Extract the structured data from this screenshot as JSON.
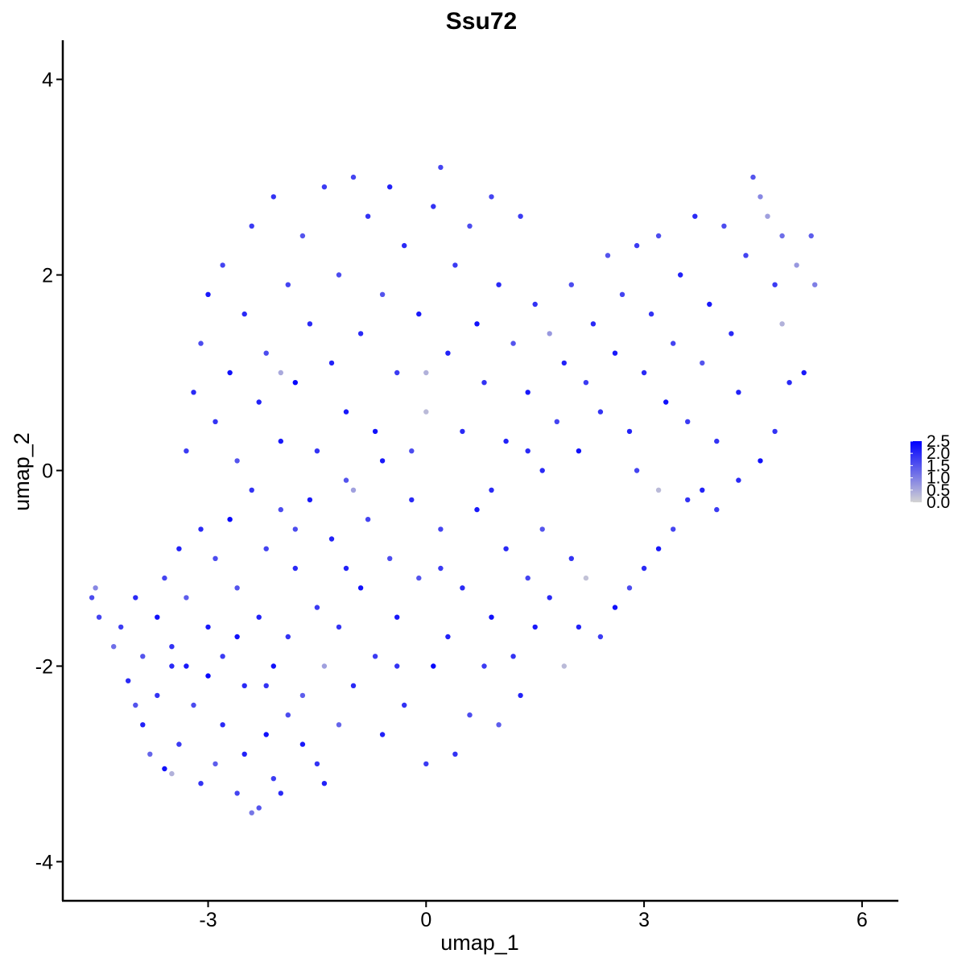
{
  "chart_data": {
    "type": "scatter",
    "title": "Ssu72",
    "xlabel": "umap_1",
    "ylabel": "umap_2",
    "xlim": [
      -5.0,
      6.5
    ],
    "ylim": [
      -4.4,
      4.4
    ],
    "x_ticks": [
      {
        "value": -3,
        "label": "-3"
      },
      {
        "value": 0,
        "label": "0"
      },
      {
        "value": 3,
        "label": "3"
      },
      {
        "value": 6,
        "label": "6"
      }
    ],
    "y_ticks": [
      {
        "value": -4,
        "label": "-4"
      },
      {
        "value": -2,
        "label": "-2"
      },
      {
        "value": 0,
        "label": "0"
      },
      {
        "value": 2,
        "label": "2"
      },
      {
        "value": 4,
        "label": "4"
      }
    ],
    "color_scale": {
      "name": "expression",
      "low_color": "#d3d3d3",
      "high_color": "#0000ff",
      "range": [
        0.0,
        2.5
      ],
      "ticks": [
        {
          "value": 2.5,
          "label": "2.5"
        },
        {
          "value": 2.0,
          "label": "2.0"
        },
        {
          "value": 1.5,
          "label": "1.5"
        },
        {
          "value": 1.0,
          "label": "1.0"
        },
        {
          "value": 0.5,
          "label": "0.5"
        },
        {
          "value": 0.0,
          "label": "0.0"
        }
      ]
    },
    "legend_position": "right",
    "grid": false,
    "points": [
      {
        "x": -4.6,
        "y": -1.3,
        "v": 1.6
      },
      {
        "x": -4.55,
        "y": -1.2,
        "v": 0.9
      },
      {
        "x": -4.5,
        "y": -1.5,
        "v": 1.7
      },
      {
        "x": -4.3,
        "y": -1.8,
        "v": 1.2
      },
      {
        "x": -4.1,
        "y": -2.15,
        "v": 2.0
      },
      {
        "x": -4.0,
        "y": -2.4,
        "v": 1.5
      },
      {
        "x": -3.9,
        "y": -2.6,
        "v": 2.1
      },
      {
        "x": -3.8,
        "y": -2.9,
        "v": 1.3
      },
      {
        "x": -3.7,
        "y": -2.3,
        "v": 1.9
      },
      {
        "x": -3.6,
        "y": -3.05,
        "v": 2.3
      },
      {
        "x": -3.5,
        "y": -3.1,
        "v": 0.4
      },
      {
        "x": -3.4,
        "y": -2.8,
        "v": 1.8
      },
      {
        "x": -3.3,
        "y": -2.0,
        "v": 2.2
      },
      {
        "x": -3.2,
        "y": -2.4,
        "v": 1.6
      },
      {
        "x": -3.1,
        "y": -3.2,
        "v": 1.9
      },
      {
        "x": -3.0,
        "y": -2.1,
        "v": 2.4
      },
      {
        "x": -2.9,
        "y": -3.0,
        "v": 1.4
      },
      {
        "x": -2.8,
        "y": -2.6,
        "v": 2.0
      },
      {
        "x": -2.6,
        "y": -3.3,
        "v": 1.7
      },
      {
        "x": -2.5,
        "y": -2.9,
        "v": 2.1
      },
      {
        "x": -2.4,
        "y": -3.5,
        "v": 1.1
      },
      {
        "x": -2.3,
        "y": -3.45,
        "v": 1.5
      },
      {
        "x": -2.2,
        "y": -2.7,
        "v": 2.3
      },
      {
        "x": -2.1,
        "y": -3.15,
        "v": 1.8
      },
      {
        "x": -2.0,
        "y": -3.3,
        "v": 2.0
      },
      {
        "x": -1.9,
        "y": -2.5,
        "v": 1.6
      },
      {
        "x": -1.7,
        "y": -2.8,
        "v": 2.2
      },
      {
        "x": -1.5,
        "y": -3.0,
        "v": 1.9
      },
      {
        "x": -1.4,
        "y": -3.2,
        "v": 2.1
      },
      {
        "x": -1.2,
        "y": -2.6,
        "v": 1.3
      },
      {
        "x": -4.2,
        "y": -1.6,
        "v": 1.8
      },
      {
        "x": -4.0,
        "y": -1.3,
        "v": 2.0
      },
      {
        "x": -3.9,
        "y": -1.9,
        "v": 1.5
      },
      {
        "x": -3.7,
        "y": -1.5,
        "v": 2.3
      },
      {
        "x": -3.6,
        "y": -1.1,
        "v": 1.7
      },
      {
        "x": -3.5,
        "y": -1.8,
        "v": 1.9
      },
      {
        "x": -3.4,
        "y": -0.8,
        "v": 2.1
      },
      {
        "x": -3.3,
        "y": -1.3,
        "v": 1.4
      },
      {
        "x": -3.1,
        "y": -0.6,
        "v": 2.0
      },
      {
        "x": -3.0,
        "y": -1.6,
        "v": 2.2
      },
      {
        "x": -2.9,
        "y": -0.9,
        "v": 1.6
      },
      {
        "x": -2.8,
        "y": -1.9,
        "v": 1.8
      },
      {
        "x": -2.7,
        "y": -0.5,
        "v": 2.4
      },
      {
        "x": -2.6,
        "y": -1.2,
        "v": 1.5
      },
      {
        "x": -2.5,
        "y": -2.2,
        "v": 2.0
      },
      {
        "x": -2.4,
        "y": -0.2,
        "v": 1.9
      },
      {
        "x": -2.3,
        "y": -1.5,
        "v": 2.1
      },
      {
        "x": -2.2,
        "y": -0.8,
        "v": 1.7
      },
      {
        "x": -2.1,
        "y": -2.0,
        "v": 2.3
      },
      {
        "x": -2.0,
        "y": -0.4,
        "v": 1.6
      },
      {
        "x": -1.9,
        "y": -1.7,
        "v": 1.9
      },
      {
        "x": -1.8,
        "y": -1.0,
        "v": 2.0
      },
      {
        "x": -1.7,
        "y": -2.3,
        "v": 1.4
      },
      {
        "x": -1.6,
        "y": -0.3,
        "v": 2.2
      },
      {
        "x": -1.5,
        "y": -1.4,
        "v": 1.8
      },
      {
        "x": -1.4,
        "y": -2.0,
        "v": 0.6
      },
      {
        "x": -1.3,
        "y": -0.7,
        "v": 2.1
      },
      {
        "x": -1.2,
        "y": -1.6,
        "v": 1.9
      },
      {
        "x": -1.1,
        "y": -0.1,
        "v": 1.5
      },
      {
        "x": -1.0,
        "y": -2.2,
        "v": 2.0
      },
      {
        "x": -0.9,
        "y": -1.2,
        "v": 2.3
      },
      {
        "x": -0.8,
        "y": -0.5,
        "v": 1.7
      },
      {
        "x": -0.7,
        "y": -1.9,
        "v": 1.8
      },
      {
        "x": -0.6,
        "y": -2.7,
        "v": 2.1
      },
      {
        "x": -0.5,
        "y": -0.9,
        "v": 1.6
      },
      {
        "x": -0.4,
        "y": -1.5,
        "v": 2.2
      },
      {
        "x": -0.3,
        "y": -2.4,
        "v": 1.9
      },
      {
        "x": -0.2,
        "y": -0.3,
        "v": 2.0
      },
      {
        "x": -0.1,
        "y": -1.1,
        "v": 1.5
      },
      {
        "x": 0.0,
        "y": -3.0,
        "v": 1.8
      },
      {
        "x": 0.1,
        "y": -2.0,
        "v": 2.4
      },
      {
        "x": 0.2,
        "y": -0.6,
        "v": 1.7
      },
      {
        "x": 0.3,
        "y": -1.7,
        "v": 2.1
      },
      {
        "x": 0.4,
        "y": -2.9,
        "v": 1.9
      },
      {
        "x": 0.5,
        "y": -1.2,
        "v": 2.0
      },
      {
        "x": 0.6,
        "y": -2.5,
        "v": 1.6
      },
      {
        "x": 0.7,
        "y": -0.4,
        "v": 2.2
      },
      {
        "x": 0.8,
        "y": -2.0,
        "v": 1.8
      },
      {
        "x": 0.9,
        "y": -1.5,
        "v": 2.3
      },
      {
        "x": 1.0,
        "y": -2.6,
        "v": 1.4
      },
      {
        "x": 1.1,
        "y": -0.8,
        "v": 2.0
      },
      {
        "x": 1.2,
        "y": -1.9,
        "v": 1.9
      },
      {
        "x": 1.3,
        "y": -2.3,
        "v": 2.1
      },
      {
        "x": 1.4,
        "y": -1.1,
        "v": 1.7
      },
      {
        "x": 1.5,
        "y": -1.6,
        "v": 2.2
      },
      {
        "x": 1.6,
        "y": -0.6,
        "v": 1.5
      },
      {
        "x": 1.7,
        "y": -1.3,
        "v": 2.0
      },
      {
        "x": 1.9,
        "y": -2.0,
        "v": 0.3
      },
      {
        "x": 2.0,
        "y": -0.9,
        "v": 1.9
      },
      {
        "x": 2.1,
        "y": -1.6,
        "v": 2.1
      },
      {
        "x": 2.2,
        "y": -1.1,
        "v": 0.2
      },
      {
        "x": 2.4,
        "y": -1.7,
        "v": 1.8
      },
      {
        "x": 2.6,
        "y": -1.4,
        "v": 2.3
      },
      {
        "x": 2.8,
        "y": -1.2,
        "v": 1.6
      },
      {
        "x": 3.0,
        "y": -1.0,
        "v": 2.0
      },
      {
        "x": 3.2,
        "y": -0.8,
        "v": 2.2
      },
      {
        "x": 3.4,
        "y": -0.6,
        "v": 1.7
      },
      {
        "x": 3.6,
        "y": -0.3,
        "v": 1.9
      },
      {
        "x": 3.8,
        "y": -0.2,
        "v": 2.1
      },
      {
        "x": -3.3,
        "y": 0.2,
        "v": 1.8
      },
      {
        "x": -3.2,
        "y": 0.8,
        "v": 2.0
      },
      {
        "x": -3.1,
        "y": 1.3,
        "v": 1.6
      },
      {
        "x": -3.0,
        "y": 1.8,
        "v": 2.2
      },
      {
        "x": -2.9,
        "y": 0.5,
        "v": 1.9
      },
      {
        "x": -2.8,
        "y": 2.1,
        "v": 1.7
      },
      {
        "x": -2.7,
        "y": 1.0,
        "v": 2.3
      },
      {
        "x": -2.6,
        "y": 0.1,
        "v": 1.5
      },
      {
        "x": -2.5,
        "y": 1.6,
        "v": 2.0
      },
      {
        "x": -2.4,
        "y": 2.5,
        "v": 1.8
      },
      {
        "x": -2.3,
        "y": 0.7,
        "v": 2.1
      },
      {
        "x": -2.2,
        "y": 1.2,
        "v": 1.6
      },
      {
        "x": -2.1,
        "y": 2.8,
        "v": 1.9
      },
      {
        "x": -2.0,
        "y": 0.3,
        "v": 2.2
      },
      {
        "x": -1.9,
        "y": 1.9,
        "v": 1.7
      },
      {
        "x": -1.8,
        "y": 0.9,
        "v": 2.4
      },
      {
        "x": -1.7,
        "y": 2.4,
        "v": 1.5
      },
      {
        "x": -1.6,
        "y": 1.5,
        "v": 2.0
      },
      {
        "x": -1.5,
        "y": 0.2,
        "v": 1.9
      },
      {
        "x": -1.4,
        "y": 2.9,
        "v": 1.8
      },
      {
        "x": -1.3,
        "y": 1.1,
        "v": 2.1
      },
      {
        "x": -1.2,
        "y": 2.0,
        "v": 1.6
      },
      {
        "x": -1.1,
        "y": 0.6,
        "v": 2.2
      },
      {
        "x": -1.0,
        "y": 3.0,
        "v": 1.7
      },
      {
        "x": -0.9,
        "y": 1.4,
        "v": 2.0
      },
      {
        "x": -0.8,
        "y": 2.6,
        "v": 1.9
      },
      {
        "x": -0.7,
        "y": 0.4,
        "v": 2.3
      },
      {
        "x": -0.6,
        "y": 1.8,
        "v": 1.5
      },
      {
        "x": -0.5,
        "y": 2.9,
        "v": 2.1
      },
      {
        "x": -0.4,
        "y": 1.0,
        "v": 1.8
      },
      {
        "x": -0.3,
        "y": 2.3,
        "v": 2.0
      },
      {
        "x": -0.2,
        "y": 0.2,
        "v": 1.6
      },
      {
        "x": -0.1,
        "y": 1.6,
        "v": 2.2
      },
      {
        "x": 0.0,
        "y": 0.6,
        "v": 0.3
      },
      {
        "x": 0.1,
        "y": 2.7,
        "v": 1.9
      },
      {
        "x": 0.2,
        "y": 3.1,
        "v": 1.7
      },
      {
        "x": 0.3,
        "y": 1.2,
        "v": 2.1
      },
      {
        "x": 0.4,
        "y": 2.1,
        "v": 1.8
      },
      {
        "x": 0.5,
        "y": 0.4,
        "v": 2.0
      },
      {
        "x": 0.6,
        "y": 2.5,
        "v": 1.6
      },
      {
        "x": 0.7,
        "y": 1.5,
        "v": 2.3
      },
      {
        "x": 0.8,
        "y": 0.9,
        "v": 1.9
      },
      {
        "x": 0.9,
        "y": 2.8,
        "v": 1.7
      },
      {
        "x": 1.0,
        "y": 1.9,
        "v": 2.0
      },
      {
        "x": 1.1,
        "y": 0.3,
        "v": 2.1
      },
      {
        "x": 1.2,
        "y": 1.3,
        "v": 1.5
      },
      {
        "x": 1.3,
        "y": 2.6,
        "v": 1.8
      },
      {
        "x": 1.4,
        "y": 0.8,
        "v": 2.2
      },
      {
        "x": 1.5,
        "y": 1.7,
        "v": 1.9
      },
      {
        "x": 1.6,
        "y": 0.0,
        "v": 2.0
      },
      {
        "x": 1.7,
        "y": 1.4,
        "v": 0.7
      },
      {
        "x": 1.8,
        "y": 0.5,
        "v": 1.7
      },
      {
        "x": 1.9,
        "y": 1.1,
        "v": 2.1
      },
      {
        "x": 2.0,
        "y": 1.9,
        "v": 1.6
      },
      {
        "x": 2.1,
        "y": 0.2,
        "v": 2.3
      },
      {
        "x": 2.2,
        "y": 0.9,
        "v": 1.8
      },
      {
        "x": 2.3,
        "y": 1.5,
        "v": 2.0
      },
      {
        "x": 2.4,
        "y": 0.6,
        "v": 1.9
      },
      {
        "x": 2.5,
        "y": 2.2,
        "v": 1.5
      },
      {
        "x": 2.6,
        "y": 1.2,
        "v": 2.2
      },
      {
        "x": 2.7,
        "y": 1.8,
        "v": 1.7
      },
      {
        "x": 2.8,
        "y": 0.4,
        "v": 2.1
      },
      {
        "x": 2.9,
        "y": 2.3,
        "v": 1.8
      },
      {
        "x": 3.0,
        "y": 1.0,
        "v": 2.0
      },
      {
        "x": 3.1,
        "y": 1.6,
        "v": 1.9
      },
      {
        "x": 3.2,
        "y": 2.4,
        "v": 1.6
      },
      {
        "x": 3.3,
        "y": 0.7,
        "v": 2.3
      },
      {
        "x": 3.4,
        "y": 1.3,
        "v": 1.7
      },
      {
        "x": 3.5,
        "y": 2.0,
        "v": 2.1
      },
      {
        "x": 3.6,
        "y": 0.5,
        "v": 1.8
      },
      {
        "x": 3.7,
        "y": 2.6,
        "v": 2.0
      },
      {
        "x": 3.8,
        "y": 1.1,
        "v": 1.5
      },
      {
        "x": 3.9,
        "y": 1.7,
        "v": 2.2
      },
      {
        "x": 4.0,
        "y": 0.3,
        "v": 1.9
      },
      {
        "x": 4.1,
        "y": 2.5,
        "v": 1.6
      },
      {
        "x": 4.2,
        "y": 1.4,
        "v": 2.0
      },
      {
        "x": 4.3,
        "y": 0.8,
        "v": 2.1
      },
      {
        "x": 4.4,
        "y": 2.2,
        "v": 1.7
      },
      {
        "x": 4.5,
        "y": 3.0,
        "v": 1.5
      },
      {
        "x": 4.6,
        "y": 2.8,
        "v": 0.9
      },
      {
        "x": 4.7,
        "y": 2.6,
        "v": 0.6
      },
      {
        "x": 4.8,
        "y": 1.9,
        "v": 1.8
      },
      {
        "x": 4.9,
        "y": 2.4,
        "v": 1.2
      },
      {
        "x": 5.0,
        "y": 0.9,
        "v": 2.0
      },
      {
        "x": 5.1,
        "y": 2.1,
        "v": 0.7
      },
      {
        "x": 5.2,
        "y": 1.0,
        "v": 2.2
      },
      {
        "x": 5.3,
        "y": 2.4,
        "v": 1.4
      },
      {
        "x": 5.35,
        "y": 1.9,
        "v": 1.0
      },
      {
        "x": 4.6,
        "y": 0.1,
        "v": 2.3
      },
      {
        "x": 4.8,
        "y": 0.4,
        "v": 1.9
      },
      {
        "x": 4.9,
        "y": 1.5,
        "v": 0.4
      },
      {
        "x": 4.3,
        "y": -0.1,
        "v": 2.0
      },
      {
        "x": 4.0,
        "y": -0.4,
        "v": 1.8
      },
      {
        "x": -2.0,
        "y": 1.0,
        "v": 0.5
      },
      {
        "x": -1.0,
        "y": -0.2,
        "v": 0.6
      },
      {
        "x": 0.0,
        "y": 1.0,
        "v": 0.4
      },
      {
        "x": -3.5,
        "y": -2.0,
        "v": 2.0
      },
      {
        "x": -2.2,
        "y": -2.2,
        "v": 1.9
      },
      {
        "x": -1.1,
        "y": -1.0,
        "v": 2.1
      },
      {
        "x": 0.2,
        "y": -1.0,
        "v": 1.8
      },
      {
        "x": 1.4,
        "y": 0.2,
        "v": 2.0
      },
      {
        "x": 2.9,
        "y": 0.0,
        "v": 1.7
      },
      {
        "x": 3.2,
        "y": -0.2,
        "v": 0.3
      },
      {
        "x": -0.6,
        "y": 0.1,
        "v": 2.2
      },
      {
        "x": -1.8,
        "y": -0.6,
        "v": 1.6
      },
      {
        "x": -2.6,
        "y": -1.7,
        "v": 2.3
      },
      {
        "x": -0.4,
        "y": -2.0,
        "v": 1.9
      },
      {
        "x": 0.9,
        "y": -0.2,
        "v": 2.0
      }
    ]
  }
}
